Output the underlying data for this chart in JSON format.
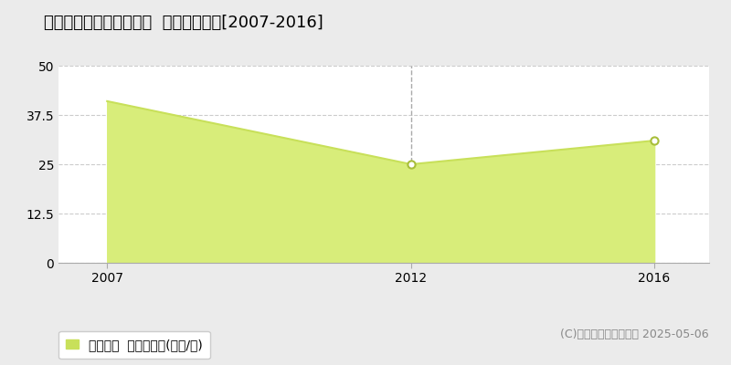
{
  "title": "名張市桔梗が丘西７番町  住宅価格推移[2007-2016]",
  "years": [
    2007,
    2012,
    2016
  ],
  "values": [
    41,
    25,
    31
  ],
  "line_color": "#c8e05a",
  "fill_color": "#d8ed7a",
  "marker_color": "#ffffff",
  "marker_edge_color": "#a8be3a",
  "outer_bg_color": "#ebebeb",
  "plot_bg_color": "#ffffff",
  "grid_color": "#cccccc",
  "vline_color": "#aaaaaa",
  "ylim": [
    0,
    50
  ],
  "yticks": [
    0,
    12.5,
    25,
    37.5,
    50
  ],
  "xticks": [
    2007,
    2012,
    2016
  ],
  "legend_label": "住宅価格  平均坪単価(万円/坪)",
  "legend_color": "#c8e05a",
  "copyright_text": "(C)土地価格ドットコム 2025-05-06",
  "title_fontsize": 13,
  "tick_fontsize": 10,
  "legend_fontsize": 10,
  "copyright_fontsize": 9
}
